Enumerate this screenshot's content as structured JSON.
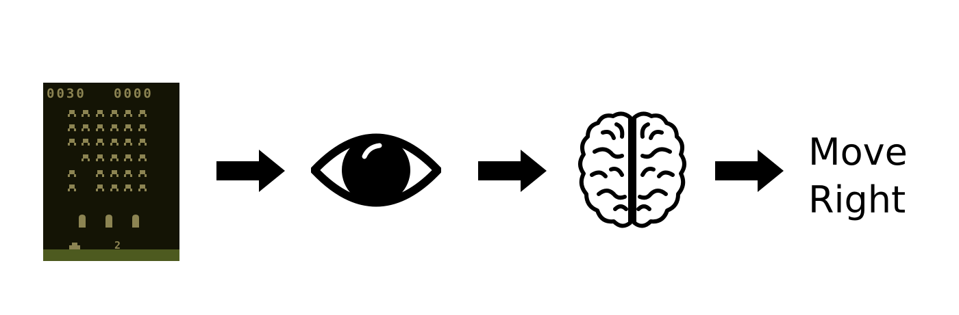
{
  "game": {
    "score_left": "0030",
    "score_right": "0000",
    "lives": "2",
    "background_color": "#141405",
    "sprite_color": "#8c8452",
    "ground_color": "#4d5a1f"
  },
  "pipeline": {
    "steps": [
      "game-screen",
      "eye-icon",
      "brain-icon",
      "action-label"
    ],
    "action": {
      "line1": "Move",
      "line2": "Right"
    }
  }
}
